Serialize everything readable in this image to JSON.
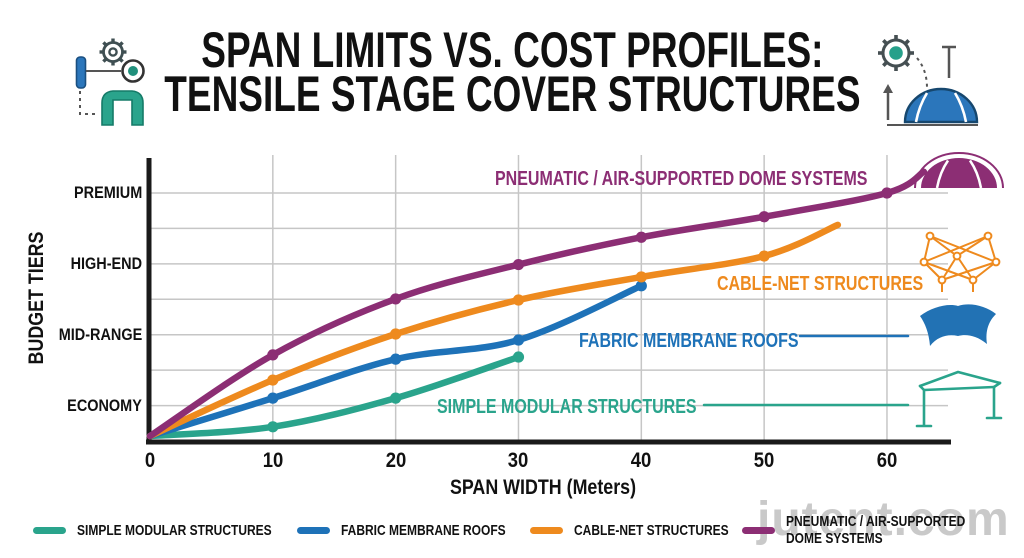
{
  "title": {
    "line1": "SPAN LIMITS VS. COST PROFILES:",
    "line2": "TENSILE STAGE COVER STRUCTURES"
  },
  "watermark": "jutent.com",
  "colors": {
    "simple_modular": "#2aa48c",
    "fabric_membrane": "#1e72b8",
    "cable_net": "#ee8a1e",
    "pneumatic_dome": "#8c2e74",
    "axis": "#1a1a1a",
    "gridline": "#c6c6c6",
    "title_text": "#111111",
    "accent_blue_icon": "#2b76bb",
    "accent_teal_icon": "#2aa48c"
  },
  "chart_data": {
    "type": "line",
    "title": "SPAN LIMITS VS. COST PROFILES: TENSILE STAGE COVER STRUCTURES",
    "xlabel": "SPAN WIDTH (Meters)",
    "ylabel": "BUDGET TIERS",
    "x_ticks": [
      0,
      10,
      20,
      30,
      40,
      50,
      60
    ],
    "xlim": [
      0,
      65
    ],
    "ylim": [
      0,
      8
    ],
    "grid": true,
    "legend_position": "bottom",
    "y_axis": {
      "note": "y measured in horizontal-gridline units; labeled tiers sit on gridlines",
      "tick_labels": [
        "ECONOMY",
        "MID-RANGE",
        "HIGH-END",
        "PREMIUM"
      ],
      "tick_values": [
        1,
        3,
        5,
        7
      ],
      "gridline_values": [
        1,
        2,
        3,
        4,
        5,
        6,
        7
      ]
    },
    "series": [
      {
        "name": "SIMPLE MODULAR STRUCTURES",
        "color": "#2aa48c",
        "points": [
          [
            0,
            0.14
          ],
          [
            10,
            0.4
          ],
          [
            20,
            1.21
          ],
          [
            30,
            2.37
          ]
        ],
        "max_span_m": 30
      },
      {
        "name": "FABRIC MEMBRANE ROOFS",
        "color": "#1e72b8",
        "points": [
          [
            0,
            0.14
          ],
          [
            10,
            1.21
          ],
          [
            20,
            2.31
          ],
          [
            30,
            2.85
          ],
          [
            40,
            4.38
          ]
        ],
        "max_span_m": 40
      },
      {
        "name": "CABLE-NET STRUCTURES",
        "color": "#ee8a1e",
        "points": [
          [
            0,
            0.14
          ],
          [
            10,
            1.72
          ],
          [
            20,
            3.02
          ],
          [
            30,
            3.98
          ],
          [
            40,
            4.63
          ],
          [
            50,
            5.22
          ],
          [
            56,
            6.1
          ]
        ],
        "max_span_m": 56
      },
      {
        "name": "PNEUMATIC / AIR-SUPPORTED DOME SYSTEMS",
        "color": "#8c2e74",
        "points": [
          [
            0,
            0.14
          ],
          [
            10,
            2.43
          ],
          [
            20,
            4.01
          ],
          [
            30,
            4.98
          ],
          [
            40,
            5.75
          ],
          [
            50,
            6.33
          ],
          [
            60,
            7.0
          ],
          [
            63,
            7.6
          ]
        ],
        "max_span_m": 63
      }
    ]
  },
  "legend": {
    "items": [
      {
        "label": "SIMPLE MODULAR STRUCTURES"
      },
      {
        "label": "FABRIC MEMBRANE ROOFS"
      },
      {
        "label": "CABLE-NET STRUCTURES"
      },
      {
        "label": "PNEUMATIC / AIR-SUPPORTED",
        "label2": "DOME SYSTEMS"
      }
    ]
  },
  "icons": {
    "top_left": [
      "gear-icon",
      "measure-bar-icon",
      "target-circle-icon",
      "dashed-path",
      "arch-structure-icon"
    ],
    "top_right": [
      "gear-icon",
      "dashed-path",
      "height-pin-icon",
      "up-arrow-icon",
      "dome-icon"
    ],
    "chart_right": [
      "dome-icon",
      "cable-net-icon",
      "membrane-canopy-icon",
      "frame-structure-icon"
    ]
  }
}
